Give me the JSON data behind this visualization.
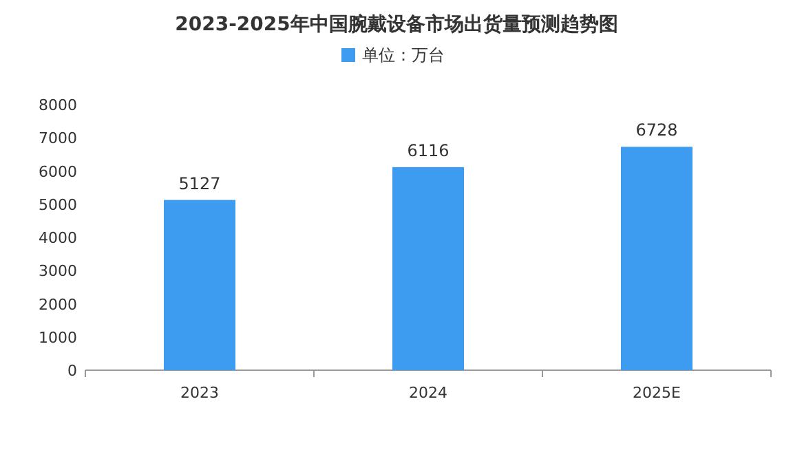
{
  "chart_data": {
    "type": "bar",
    "title": "2023-2025年中国腕戴设备市场出货量预测趋势图",
    "categories": [
      "2023",
      "2024",
      "2025E"
    ],
    "series": [
      {
        "name": "单位：万台",
        "color": "#3d9cf0",
        "values": [
          5127,
          6116,
          6728
        ]
      }
    ],
    "ylim": [
      0,
      8000
    ],
    "yticks": [
      0,
      1000,
      2000,
      3000,
      4000,
      5000,
      6000,
      7000,
      8000
    ],
    "data_labels": true,
    "legend": "top"
  }
}
